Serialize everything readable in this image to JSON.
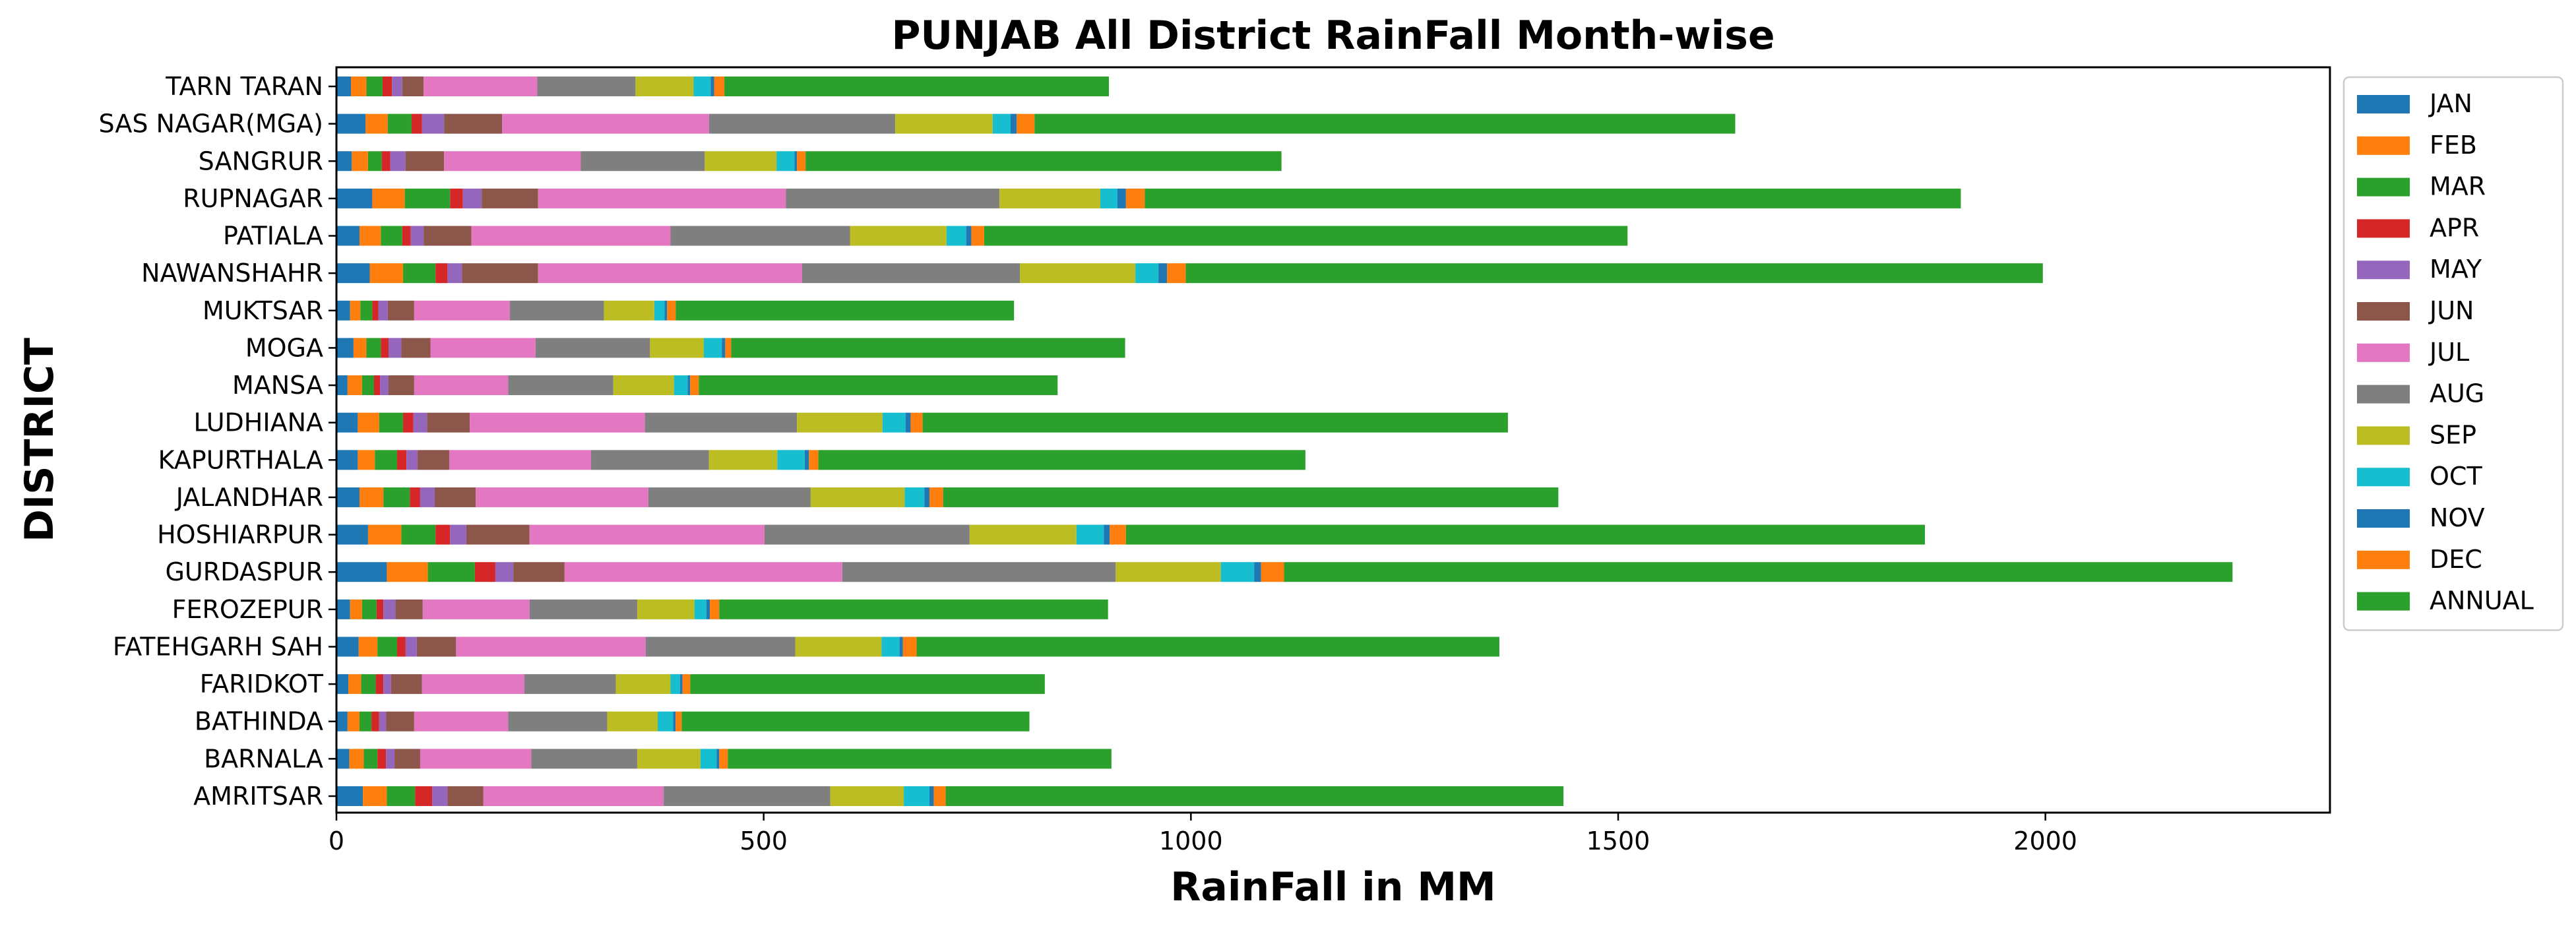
{
  "chart_data": {
    "type": "bar",
    "orientation": "horizontal",
    "stacked": true,
    "title": "PUNJAB All District RainFall Month-wise",
    "xlabel": "RainFall in MM",
    "ylabel": "DISTRICT",
    "xlim": [
      0,
      2333
    ],
    "xticks": [
      0,
      500,
      1000,
      1500,
      2000
    ],
    "xtick_labels": [
      "0",
      "500",
      "1000",
      "1500",
      "2000"
    ],
    "grid": false,
    "legend_position": "right",
    "categories": [
      "AMRITSAR",
      "BARNALA",
      "BATHINDA",
      "FARIDKOT",
      "FATEHGARH SAH",
      "FEROZEPUR",
      "GURDASPUR",
      "HOSHIARPUR",
      "JALANDHAR",
      "KAPURTHALA",
      "LUDHIANA",
      "MANSA",
      "MOGA",
      "MUKTSAR",
      "NAWANSHAHR",
      "PATIALA",
      "RUPNAGAR",
      "SANGRUR",
      "SAS NAGAR(MGA)",
      "TARN TARAN"
    ],
    "series": [
      {
        "name": "JAN",
        "color": "#1f77b4",
        "values": [
          31,
          15,
          13,
          14,
          26,
          16,
          59,
          37,
          27,
          25,
          25,
          13,
          20,
          16,
          39,
          27,
          42,
          18,
          34,
          17
        ]
      },
      {
        "name": "FEB",
        "color": "#ff7f0e",
        "values": [
          28,
          17,
          14,
          15,
          22,
          14,
          48,
          39,
          28,
          20,
          25,
          17,
          15,
          12,
          39,
          25,
          38,
          19,
          26,
          18
        ]
      },
      {
        "name": "MAR",
        "color": "#2ca02c",
        "values": [
          33,
          16,
          14,
          17,
          23,
          17,
          55,
          40,
          31,
          26,
          28,
          14,
          17,
          14,
          38,
          25,
          53,
          16,
          28,
          19
        ]
      },
      {
        "name": "APR",
        "color": "#d62728",
        "values": [
          20,
          10,
          9,
          9,
          10,
          8,
          24,
          17,
          12,
          11,
          12,
          7,
          9,
          7,
          14,
          10,
          15,
          10,
          12,
          11
        ]
      },
      {
        "name": "MAY",
        "color": "#9467bd",
        "values": [
          18,
          10,
          8,
          9,
          13,
          14,
          21,
          19,
          17,
          13,
          16,
          10,
          15,
          11,
          17,
          15,
          22,
          18,
          26,
          12
        ]
      },
      {
        "name": "JUN",
        "color": "#8c564b",
        "values": [
          42,
          30,
          33,
          36,
          46,
          32,
          60,
          74,
          48,
          37,
          50,
          30,
          34,
          31,
          89,
          56,
          66,
          45,
          68,
          25
        ]
      },
      {
        "name": "JUL",
        "color": "#e377c2",
        "values": [
          211,
          130,
          110,
          120,
          222,
          125,
          325,
          275,
          202,
          166,
          205,
          110,
          123,
          112,
          309,
          233,
          290,
          160,
          242,
          133
        ]
      },
      {
        "name": "AUG",
        "color": "#7f7f7f",
        "values": [
          195,
          124,
          116,
          107,
          175,
          126,
          320,
          240,
          190,
          138,
          178,
          123,
          134,
          110,
          255,
          210,
          250,
          145,
          218,
          115
        ]
      },
      {
        "name": "SEP",
        "color": "#bcbd22",
        "values": [
          86,
          74,
          59,
          64,
          101,
          67,
          123,
          125,
          110,
          80,
          100,
          71,
          63,
          59,
          135,
          113,
          118,
          84,
          114,
          68
        ]
      },
      {
        "name": "OCT",
        "color": "#17becf",
        "values": [
          30,
          19,
          18,
          11,
          21,
          14,
          39,
          32,
          23,
          32,
          27,
          16,
          21,
          12,
          27,
          23,
          20,
          21,
          21,
          20
        ]
      },
      {
        "name": "NOV",
        "color": "#1f77b4",
        "values": [
          5,
          3,
          3,
          3,
          4,
          4,
          8,
          7,
          6,
          5,
          6,
          3,
          4,
          3,
          10,
          6,
          10,
          3,
          7,
          4
        ]
      },
      {
        "name": "DEC",
        "color": "#ff7f0e",
        "values": [
          14,
          10,
          7,
          9,
          16,
          11,
          27,
          19,
          16,
          11,
          14,
          10,
          7,
          10,
          22,
          15,
          22,
          10,
          21,
          12
        ]
      },
      {
        "name": "ANNUAL",
        "color": "#2ca02c",
        "values": [
          723,
          449,
          407,
          415,
          682,
          455,
          1110,
          935,
          720,
          570,
          685,
          420,
          461,
          396,
          1003,
          753,
          955,
          557,
          820,
          450
        ]
      }
    ]
  }
}
